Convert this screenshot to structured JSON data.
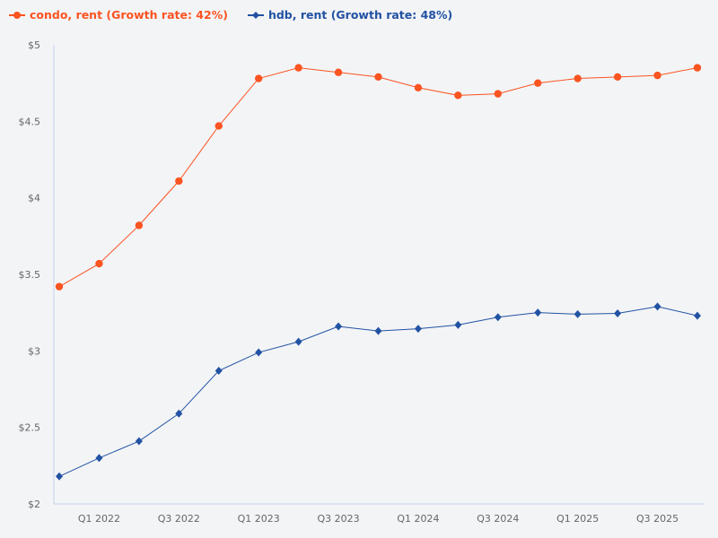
{
  "chart_data": {
    "type": "line",
    "x": [
      "Q4 2021",
      "Q1 2022",
      "Q2 2022",
      "Q3 2022",
      "Q4 2022",
      "Q1 2023",
      "Q2 2023",
      "Q3 2023",
      "Q4 2023",
      "Q1 2024",
      "Q2 2024",
      "Q3 2024",
      "Q4 2024",
      "Q1 2025",
      "Q2 2025",
      "Q3 2025",
      "Q4 2025"
    ],
    "x_tick_labels": [
      "",
      "Q1 2022",
      "",
      "Q3 2022",
      "",
      "Q1 2023",
      "",
      "Q3 2023",
      "",
      "Q1 2024",
      "",
      "Q3 2024",
      "",
      "Q1 2025",
      "",
      "Q3 2025",
      ""
    ],
    "y_ticks": [
      2,
      2.5,
      3,
      3.5,
      4,
      4.5,
      5
    ],
    "y_tick_labels": [
      "$2",
      "$2.5",
      "$3",
      "$3.5",
      "$4",
      "$4.5",
      "$5"
    ],
    "ylim": [
      2,
      5
    ],
    "grid": false,
    "legend_placement": "top-left",
    "series": [
      {
        "name": "condo, rent (Growth rate: 42%)",
        "color": "#fa5421",
        "marker": "circle",
        "values": [
          3.42,
          3.57,
          3.82,
          4.11,
          4.47,
          4.78,
          4.85,
          4.82,
          4.79,
          4.72,
          4.67,
          4.68,
          4.75,
          4.78,
          4.79,
          4.8,
          4.85
        ]
      },
      {
        "name": "hdb, rent (Growth rate: 48%)",
        "color": "#2152a3",
        "marker": "diamond",
        "values": [
          2.18,
          2.3,
          2.41,
          2.59,
          2.87,
          2.99,
          3.06,
          3.16,
          3.13,
          3.145,
          3.17,
          3.22,
          3.25,
          3.24,
          3.245,
          3.29,
          3.23
        ]
      }
    ]
  },
  "axis_color": "#c5d3ea"
}
